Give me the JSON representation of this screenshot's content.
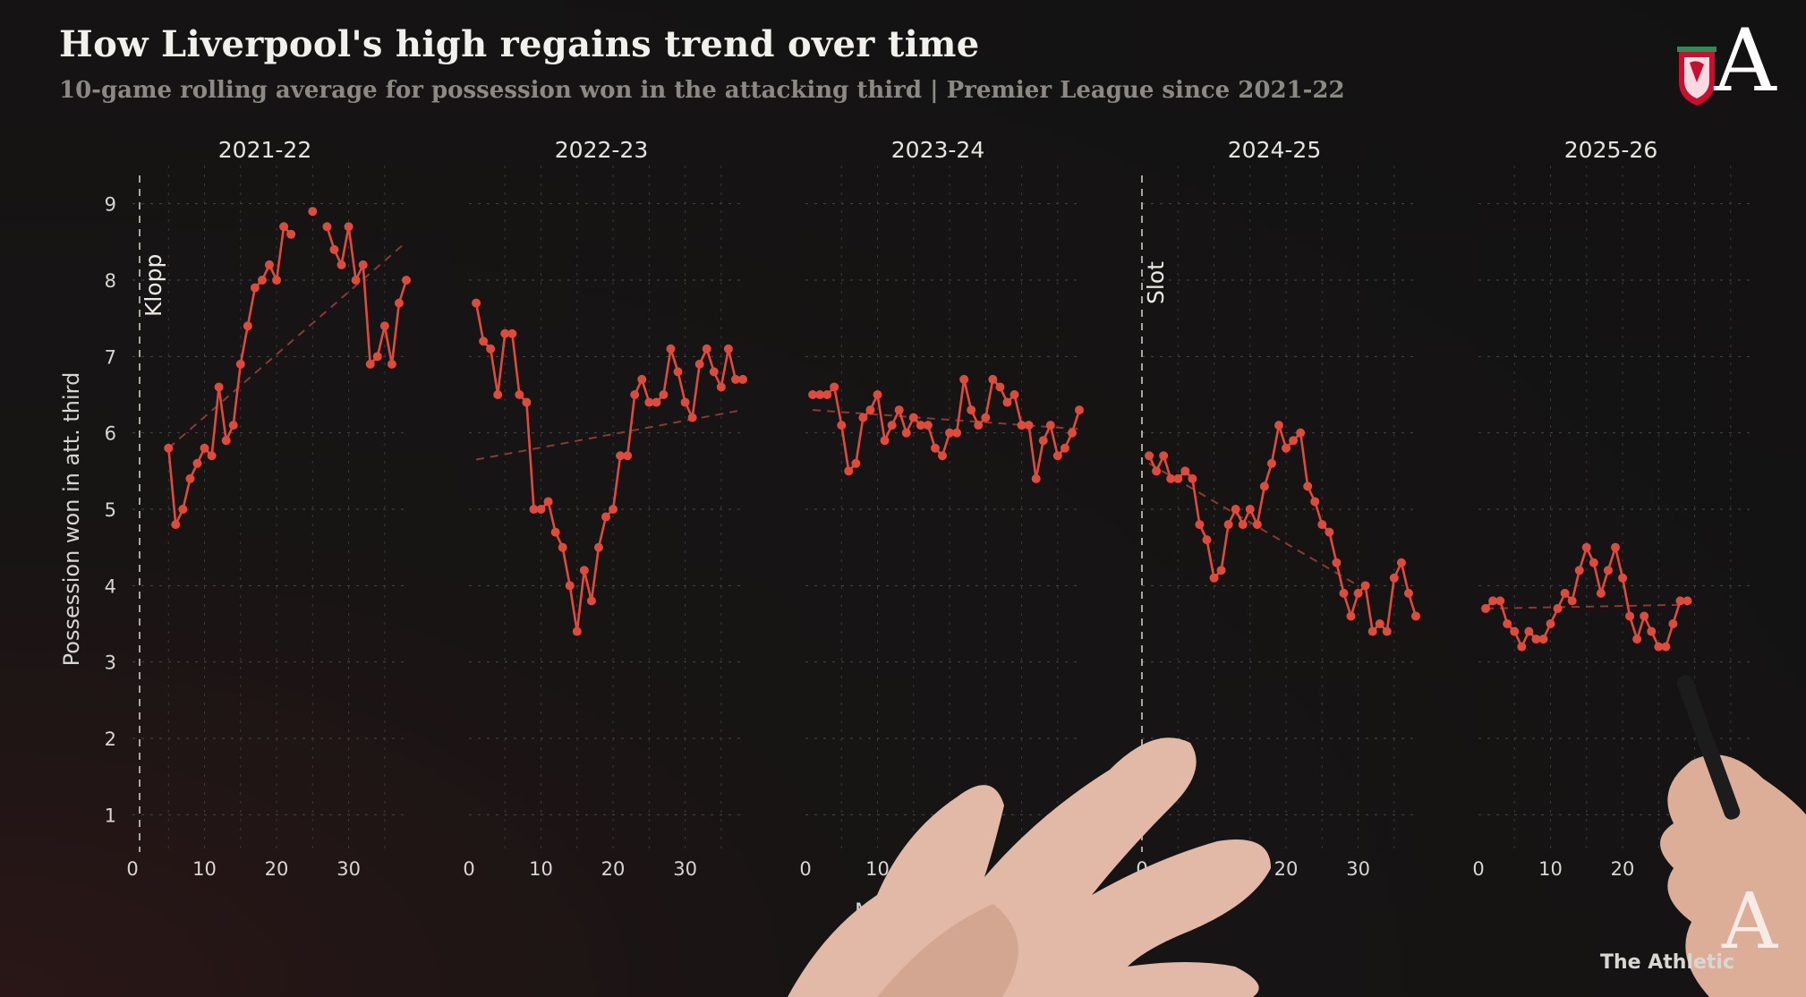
{
  "header": {
    "title": "How Liverpool's high regains trend over time",
    "subtitle": "10-game rolling average for possession won in the attacking third | Premier League since 2021-22"
  },
  "brand": {
    "logo_letter": "A",
    "credit": "The Athletic",
    "accent_color": "#e04a3a",
    "trend_color": "#8a3a34"
  },
  "chart_data": {
    "type": "line",
    "ylabel": "Possession won in att. third",
    "xlabel": "Ma",
    "ylim": [
      0.5,
      9.5
    ],
    "yticks": [
      1,
      2,
      3,
      4,
      5,
      6,
      7,
      8,
      9
    ],
    "xlim": [
      0,
      38
    ],
    "xticks": [
      0,
      10,
      20,
      30
    ],
    "grid": true,
    "annotations": [
      {
        "text": "Klopp",
        "panel": 0,
        "x": 0
      },
      {
        "text": "Slot",
        "panel": 3,
        "x": 0
      }
    ],
    "panels": [
      {
        "season": "2021-22",
        "x": [
          5,
          6,
          7,
          8,
          9,
          10,
          11,
          12,
          13,
          14,
          15,
          16,
          17,
          18,
          19,
          20,
          21,
          22,
          23,
          24,
          25,
          26,
          27,
          28,
          29,
          30,
          31,
          32,
          33,
          34,
          35,
          36,
          37,
          38
        ],
        "y": [
          5.8,
          4.8,
          5.0,
          5.4,
          5.6,
          5.8,
          5.7,
          6.6,
          5.9,
          6.1,
          6.9,
          7.4,
          7.9,
          8.0,
          8.2,
          8.0,
          8.7,
          8.6,
          null,
          null,
          8.9,
          null,
          8.7,
          8.4,
          8.2,
          8.7,
          8.0,
          8.2,
          6.9,
          7.0,
          7.4,
          6.9,
          7.7,
          8.0
        ],
        "trend": [
          [
            5,
            5.8
          ],
          [
            38,
            8.5
          ]
        ]
      },
      {
        "season": "2022-23",
        "x": [
          1,
          2,
          3,
          4,
          5,
          6,
          7,
          8,
          9,
          10,
          11,
          12,
          13,
          14,
          15,
          16,
          17,
          18,
          19,
          20,
          21,
          22,
          23,
          24,
          25,
          26,
          27,
          28,
          29,
          30,
          31,
          32,
          33,
          34,
          35,
          36,
          37,
          38
        ],
        "y": [
          7.7,
          7.2,
          7.1,
          6.5,
          7.3,
          7.3,
          6.5,
          6.4,
          5.0,
          5.0,
          5.1,
          4.7,
          4.5,
          4.0,
          3.4,
          4.2,
          3.8,
          4.5,
          4.9,
          5.0,
          5.7,
          5.7,
          6.5,
          6.7,
          6.4,
          6.4,
          6.5,
          7.1,
          6.8,
          6.4,
          6.2,
          6.9,
          7.1,
          6.8,
          6.6,
          7.1,
          6.7,
          6.7
        ],
        "trend": [
          [
            1,
            5.65
          ],
          [
            38,
            6.3
          ]
        ]
      },
      {
        "season": "2023-24",
        "x": [
          1,
          2,
          3,
          4,
          5,
          6,
          7,
          8,
          9,
          10,
          11,
          12,
          13,
          14,
          15,
          16,
          17,
          18,
          19,
          20,
          21,
          22,
          23,
          24,
          25,
          26,
          27,
          28,
          29,
          30,
          31,
          32,
          33,
          34,
          35,
          36,
          37,
          38
        ],
        "y": [
          6.5,
          6.5,
          6.5,
          6.6,
          6.1,
          5.5,
          5.6,
          6.2,
          6.3,
          6.5,
          5.9,
          6.1,
          6.3,
          6.0,
          6.2,
          6.1,
          6.1,
          5.8,
          5.7,
          6.0,
          6.0,
          6.7,
          6.3,
          6.1,
          6.2,
          6.7,
          6.6,
          6.4,
          6.5,
          6.1,
          6.1,
          5.4,
          5.9,
          6.1,
          5.7,
          5.8,
          6.0,
          6.3
        ],
        "trend": [
          [
            1,
            6.3
          ],
          [
            38,
            6.05
          ]
        ]
      },
      {
        "season": "2024-25",
        "x": [
          1,
          2,
          3,
          4,
          5,
          6,
          7,
          8,
          9,
          10,
          11,
          12,
          13,
          14,
          15,
          16,
          17,
          18,
          19,
          20,
          21,
          22,
          23,
          24,
          25,
          26,
          27,
          28,
          29,
          30,
          31,
          32,
          33,
          34,
          35,
          36,
          37,
          38
        ],
        "y": [
          5.7,
          5.5,
          5.7,
          5.4,
          5.4,
          5.5,
          5.4,
          4.8,
          4.6,
          4.1,
          4.2,
          4.8,
          5.0,
          4.8,
          5.0,
          4.8,
          5.3,
          5.6,
          6.1,
          5.8,
          5.9,
          6.0,
          5.3,
          5.1,
          4.8,
          4.7,
          4.3,
          3.9,
          3.6,
          3.9,
          4.0,
          3.4,
          3.5,
          3.4,
          4.1,
          4.3,
          3.9,
          3.6
        ],
        "trend": [
          [
            1,
            5.6
          ],
          [
            30,
            4.0
          ]
        ]
      },
      {
        "season": "2025-26",
        "x": [
          1,
          2,
          3,
          4,
          5,
          6,
          7,
          8,
          9,
          10,
          11,
          12,
          13,
          14,
          15,
          16,
          17,
          18,
          19,
          20,
          21,
          22,
          23,
          24,
          25,
          26,
          27,
          28,
          29,
          30
        ],
        "y": [
          3.7,
          3.8,
          3.8,
          3.5,
          3.4,
          3.2,
          3.4,
          3.3,
          3.3,
          3.5,
          3.7,
          3.9,
          3.8,
          4.2,
          4.5,
          4.3,
          3.9,
          4.2,
          4.5,
          4.1,
          3.6,
          3.3,
          3.6,
          3.4,
          3.2,
          3.2,
          3.5,
          3.8,
          3.8,
          null
        ],
        "trend": [
          [
            1,
            3.7
          ],
          [
            29,
            3.75
          ]
        ]
      }
    ]
  }
}
